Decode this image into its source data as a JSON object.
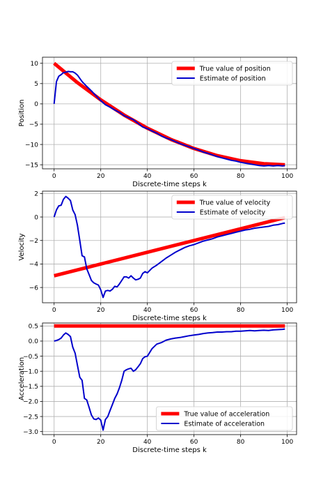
{
  "chart_data": [
    {
      "type": "line",
      "xlabel": "Discrete-time steps k",
      "ylabel": "Position",
      "xlim": [
        -5,
        104
      ],
      "ylim": [
        -16,
        11.5
      ],
      "xticks": [
        0,
        20,
        40,
        60,
        80,
        100
      ],
      "yticks": [
        -15,
        -10,
        -5,
        0,
        5,
        10
      ],
      "ytick_labels": [
        "−15",
        "−10",
        "−5",
        "0",
        "5",
        "10"
      ],
      "grid": true,
      "legend_position": "top-right",
      "series": [
        {
          "name": "True value of position",
          "color": "#ff0000",
          "x": [
            0,
            10,
            20,
            30,
            40,
            50,
            60,
            70,
            80,
            90,
            99
          ],
          "y": [
            10,
            5.25,
            1.0,
            -2.75,
            -6.0,
            -8.75,
            -11.0,
            -12.75,
            -14.0,
            -14.75,
            -15.0
          ]
        },
        {
          "name": "Estimate of position",
          "color": "#0000cc",
          "x": [
            0,
            1,
            2,
            3,
            4,
            5,
            6,
            7,
            8,
            9,
            10,
            12,
            14,
            16,
            18,
            20,
            22,
            24,
            26,
            28,
            30,
            32,
            34,
            36,
            38,
            40,
            42,
            44,
            46,
            48,
            50,
            52,
            54,
            56,
            58,
            60,
            62,
            64,
            66,
            68,
            70,
            72,
            74,
            76,
            78,
            80,
            82,
            84,
            86,
            88,
            90,
            92,
            94,
            96,
            98,
            99
          ],
          "y": [
            0,
            5.5,
            6.8,
            7.2,
            7.7,
            7.8,
            8.0,
            7.9,
            7.9,
            7.6,
            7.1,
            5.5,
            4.3,
            3.2,
            2.0,
            0.8,
            -0.2,
            -0.8,
            -1.5,
            -2.1,
            -2.9,
            -3.4,
            -3.9,
            -4.8,
            -5.7,
            -6.1,
            -6.7,
            -7.2,
            -7.9,
            -8.4,
            -8.8,
            -9.3,
            -9.8,
            -10.2,
            -10.6,
            -11.0,
            -11.4,
            -11.9,
            -12.2,
            -12.6,
            -13.0,
            -13.3,
            -13.6,
            -13.9,
            -14.1,
            -14.4,
            -14.6,
            -14.8,
            -15.0,
            -15.2,
            -15.3,
            -15.2,
            -15.3,
            -15.2,
            -15.3,
            -15.2
          ]
        }
      ]
    },
    {
      "type": "line",
      "xlabel": "Discrete-time steps k",
      "ylabel": "Velocity",
      "xlim": [
        -5,
        104
      ],
      "ylim": [
        -7.3,
        2.2
      ],
      "xticks": [
        0,
        20,
        40,
        60,
        80,
        100
      ],
      "yticks": [
        -6,
        -4,
        -2,
        0,
        2
      ],
      "ytick_labels": [
        "−6",
        "−4",
        "−2",
        "0",
        "2"
      ],
      "grid": true,
      "legend_position": "top-right",
      "series": [
        {
          "name": "True value of velocity",
          "color": "#ff0000",
          "x": [
            0,
            99
          ],
          "y": [
            -5.0,
            -0.05
          ]
        },
        {
          "name": "Estimate of velocity",
          "color": "#0000cc",
          "x": [
            0,
            1,
            2,
            3,
            4,
            5,
            6,
            7,
            8,
            9,
            10,
            11,
            12,
            13,
            14,
            15,
            16,
            17,
            18,
            19,
            20,
            21,
            22,
            23,
            24,
            25,
            26,
            27,
            28,
            29,
            30,
            31,
            32,
            33,
            34,
            35,
            36,
            37,
            38,
            39,
            40,
            42,
            44,
            46,
            48,
            50,
            52,
            54,
            56,
            58,
            60,
            62,
            64,
            66,
            68,
            70,
            72,
            74,
            76,
            78,
            80,
            82,
            84,
            86,
            88,
            90,
            92,
            94,
            96,
            98,
            99
          ],
          "y": [
            0,
            0.6,
            0.95,
            1.0,
            1.5,
            1.75,
            1.6,
            1.4,
            0.6,
            0.2,
            -0.7,
            -2.0,
            -3.3,
            -3.4,
            -4.4,
            -4.9,
            -5.4,
            -5.6,
            -5.7,
            -5.8,
            -6.2,
            -6.85,
            -6.3,
            -6.25,
            -6.3,
            -6.15,
            -5.9,
            -5.95,
            -5.7,
            -5.4,
            -5.1,
            -5.1,
            -5.2,
            -5.0,
            -5.2,
            -5.35,
            -5.3,
            -5.2,
            -4.8,
            -4.65,
            -4.75,
            -4.35,
            -4.1,
            -3.8,
            -3.5,
            -3.25,
            -3.0,
            -2.8,
            -2.6,
            -2.45,
            -2.35,
            -2.2,
            -2.05,
            -1.95,
            -1.85,
            -1.7,
            -1.6,
            -1.5,
            -1.4,
            -1.3,
            -1.2,
            -1.1,
            -1.05,
            -0.95,
            -0.9,
            -0.85,
            -0.8,
            -0.7,
            -0.65,
            -0.55,
            -0.52
          ]
        }
      ]
    },
    {
      "type": "line",
      "xlabel": "Discrete-time steps k",
      "ylabel": "Acceleration",
      "xlim": [
        -5,
        104
      ],
      "ylim": [
        -3.1,
        0.6
      ],
      "xticks": [
        0,
        20,
        40,
        60,
        80,
        100
      ],
      "yticks": [
        -3.0,
        -2.5,
        -2.0,
        -1.5,
        -1.0,
        -0.5,
        0.0,
        0.5
      ],
      "ytick_labels": [
        "−3.0",
        "−2.5",
        "−2.0",
        "−1.5",
        "−1.0",
        "−0.5",
        "0.0",
        "0.5"
      ],
      "grid": true,
      "legend_position": "bottom-right",
      "series": [
        {
          "name": "True value of acceleration",
          "color": "#ff0000",
          "x": [
            0,
            99
          ],
          "y": [
            0.5,
            0.5
          ]
        },
        {
          "name": "Estimate of acceleration",
          "color": "#0000cc",
          "x": [
            0,
            1,
            2,
            3,
            4,
            5,
            6,
            7,
            8,
            9,
            10,
            11,
            12,
            13,
            14,
            15,
            16,
            17,
            18,
            19,
            20,
            21,
            22,
            23,
            24,
            25,
            26,
            27,
            28,
            29,
            30,
            31,
            32,
            33,
            34,
            35,
            36,
            37,
            38,
            39,
            40,
            42,
            44,
            46,
            48,
            50,
            52,
            54,
            56,
            58,
            60,
            62,
            64,
            66,
            68,
            70,
            72,
            74,
            76,
            78,
            80,
            82,
            84,
            86,
            88,
            90,
            92,
            94,
            96,
            98,
            99
          ],
          "y": [
            0,
            0.02,
            0.05,
            0.1,
            0.2,
            0.27,
            0.22,
            0.15,
            -0.2,
            -0.4,
            -0.8,
            -1.2,
            -1.3,
            -1.9,
            -1.95,
            -2.2,
            -2.45,
            -2.58,
            -2.6,
            -2.55,
            -2.62,
            -2.95,
            -2.6,
            -2.5,
            -2.3,
            -2.1,
            -1.9,
            -1.75,
            -1.55,
            -1.3,
            -1.0,
            -0.95,
            -0.92,
            -0.9,
            -1.0,
            -0.95,
            -0.85,
            -0.75,
            -0.58,
            -0.52,
            -0.5,
            -0.25,
            -0.1,
            -0.05,
            0.03,
            0.07,
            0.1,
            0.12,
            0.15,
            0.18,
            0.2,
            0.22,
            0.25,
            0.27,
            0.28,
            0.3,
            0.3,
            0.31,
            0.31,
            0.33,
            0.33,
            0.34,
            0.35,
            0.34,
            0.35,
            0.36,
            0.35,
            0.37,
            0.38,
            0.39,
            0.4
          ]
        }
      ]
    }
  ]
}
